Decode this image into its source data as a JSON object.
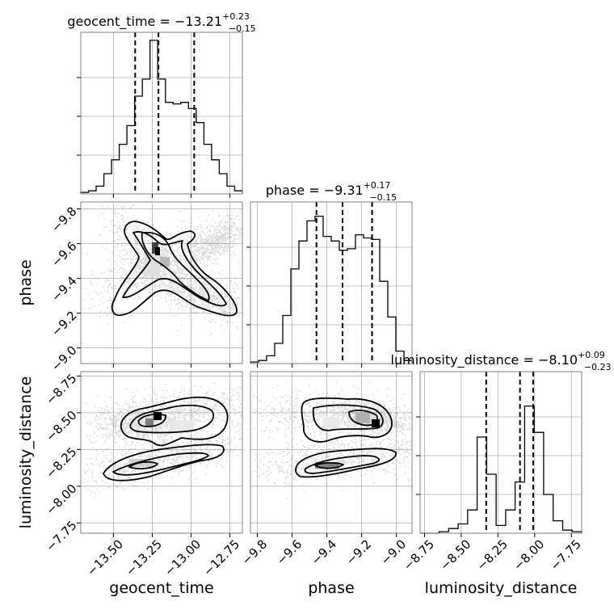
{
  "chart_data": {
    "type": "corner",
    "parameters": [
      "geocent_time",
      "phase",
      "luminosity_distance"
    ],
    "ranges": {
      "geocent_time": [
        -13.71,
        -12.67
      ],
      "phase": [
        -9.84,
        -8.91
      ],
      "luminosity_distance": [
        -8.78,
        -7.68
      ]
    },
    "ticks": {
      "geocent_time": [
        -13.5,
        -13.25,
        -13.0,
        -12.75
      ],
      "phase": [
        -9.8,
        -9.6,
        -9.4,
        -9.2,
        -9.0
      ],
      "luminosity_distance": [
        -8.75,
        -8.5,
        -8.25,
        -8.0,
        -7.75
      ]
    },
    "tick_labels": {
      "geocent_time": [
        "−13.50",
        "−13.25",
        "−13.00",
        "−12.75"
      ],
      "phase": [
        "−9.8",
        "−9.6",
        "−9.4",
        "−9.2",
        "−9.0"
      ],
      "luminosity_distance": [
        "−8.75",
        "−8.50",
        "−8.25",
        "−8.00",
        "−7.75"
      ]
    },
    "axis_labels": {
      "geocent_time": "geocent_time",
      "phase": "phase",
      "luminosity_distance": "luminosity_distance"
    },
    "titles": [
      {
        "param": "geocent_time",
        "prefix": "geocent_time = ",
        "median": "−13.21",
        "plus": "+0.23",
        "minus": "−0.15"
      },
      {
        "param": "phase",
        "prefix": "phase = ",
        "median": "−9.31",
        "plus": "+0.17",
        "minus": "−0.15"
      },
      {
        "param": "luminosity_distance",
        "prefix": "luminosity_distance = ",
        "median": "−8.10",
        "plus": "+0.09",
        "minus": "−0.23"
      }
    ],
    "quantiles": {
      "geocent_time": [
        -13.36,
        -13.21,
        -12.98
      ],
      "phase": [
        -9.46,
        -9.31,
        -9.14
      ],
      "luminosity_distance": [
        -8.33,
        -8.1,
        -8.01
      ]
    },
    "histograms": {
      "geocent_time": {
        "edges_range": [
          -13.71,
          -12.67
        ],
        "counts": [
          0.01,
          0.02,
          0.05,
          0.13,
          0.22,
          0.32,
          0.44,
          0.63,
          0.74,
          0.99,
          0.74,
          0.59,
          0.58,
          0.59,
          0.55,
          0.46,
          0.32,
          0.22,
          0.13,
          0.05,
          0.02
        ]
      },
      "phase": {
        "edges_range": [
          -9.84,
          -8.91
        ],
        "counts": [
          0.01,
          0.02,
          0.05,
          0.13,
          0.31,
          0.61,
          0.79,
          0.92,
          0.95,
          0.82,
          0.79,
          0.73,
          0.74,
          0.83,
          0.81,
          0.8,
          0.53,
          0.3,
          0.08,
          0.02
        ]
      },
      "luminosity_distance": {
        "edges_range": [
          -8.78,
          -7.68
        ],
        "counts": [
          0,
          0,
          0.01,
          0.03,
          0.06,
          0.15,
          0.62,
          0.38,
          0.05,
          0.15,
          0.33,
          0.82,
          0.65,
          0.25,
          0.08,
          0.02,
          0.01
        ]
      }
    },
    "grid": true
  }
}
